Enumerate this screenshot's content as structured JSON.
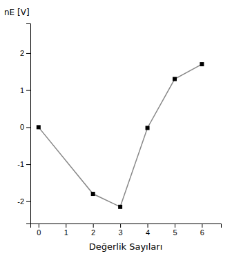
{
  "chart_data": {
    "type": "line",
    "x": [
      0,
      2,
      3,
      4,
      5,
      6
    ],
    "values": [
      0.0,
      -1.8,
      -2.15,
      -0.02,
      1.3,
      1.7
    ],
    "xlabel": "Değerlik Sayıları",
    "ylabel": "nE [V]",
    "xlim": [
      -0.3,
      6.7
    ],
    "ylim": [
      -2.6,
      2.8
    ],
    "xticks": [
      0,
      1,
      2,
      3,
      4,
      5,
      6
    ],
    "yticks": [
      -2,
      -1,
      0,
      1,
      2
    ],
    "color": "#888888",
    "marker": "square",
    "grid": false
  }
}
